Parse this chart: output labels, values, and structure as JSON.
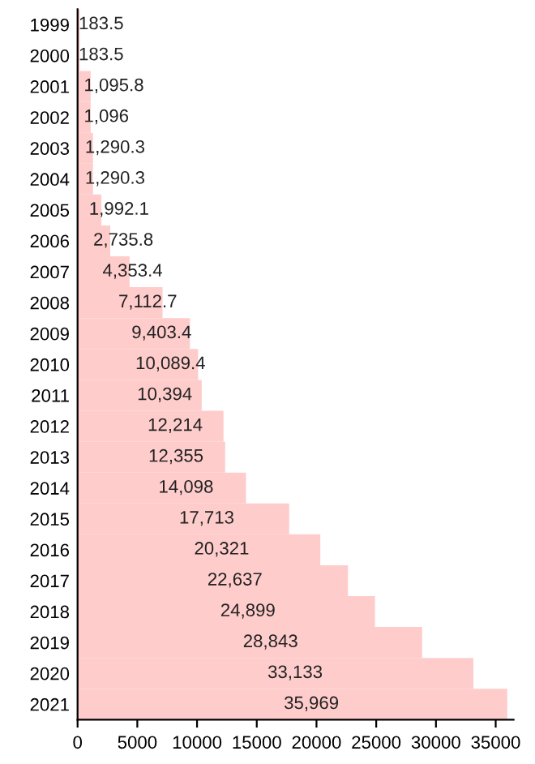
{
  "chart_data": {
    "type": "bar",
    "orientation": "horizontal",
    "categories": [
      "1999",
      "2000",
      "2001",
      "2002",
      "2003",
      "2004",
      "2005",
      "2006",
      "2007",
      "2008",
      "2009",
      "2010",
      "2011",
      "2012",
      "2013",
      "2014",
      "2015",
      "2016",
      "2017",
      "2018",
      "2019",
      "2020",
      "2021"
    ],
    "values": [
      183.5,
      183.5,
      1095.8,
      1096,
      1290.3,
      1290.3,
      1992.1,
      2735.8,
      4353.4,
      7112.7,
      9403.4,
      10089.4,
      10394,
      12214,
      12355,
      14098,
      17713,
      20321,
      22637,
      24899,
      28843,
      33133,
      35969
    ],
    "value_labels": [
      "183.5",
      "183.5",
      "1,095.8",
      "1,096",
      "1,290.3",
      "1,290.3",
      "1,992.1",
      "2,735.8",
      "4,353.4",
      "7,112.7",
      "9,403.4",
      "10,089.4",
      "10,394",
      "12,214",
      "12,355",
      "14,098",
      "17,713",
      "20,321",
      "22,637",
      "24,899",
      "28,843",
      "33,133",
      "35,969"
    ],
    "color": "#ffcccc",
    "xlim": [
      0,
      36500
    ],
    "xticks": [
      0,
      5000,
      10000,
      15000,
      20000,
      25000,
      30000,
      35000
    ],
    "grid": false
  }
}
